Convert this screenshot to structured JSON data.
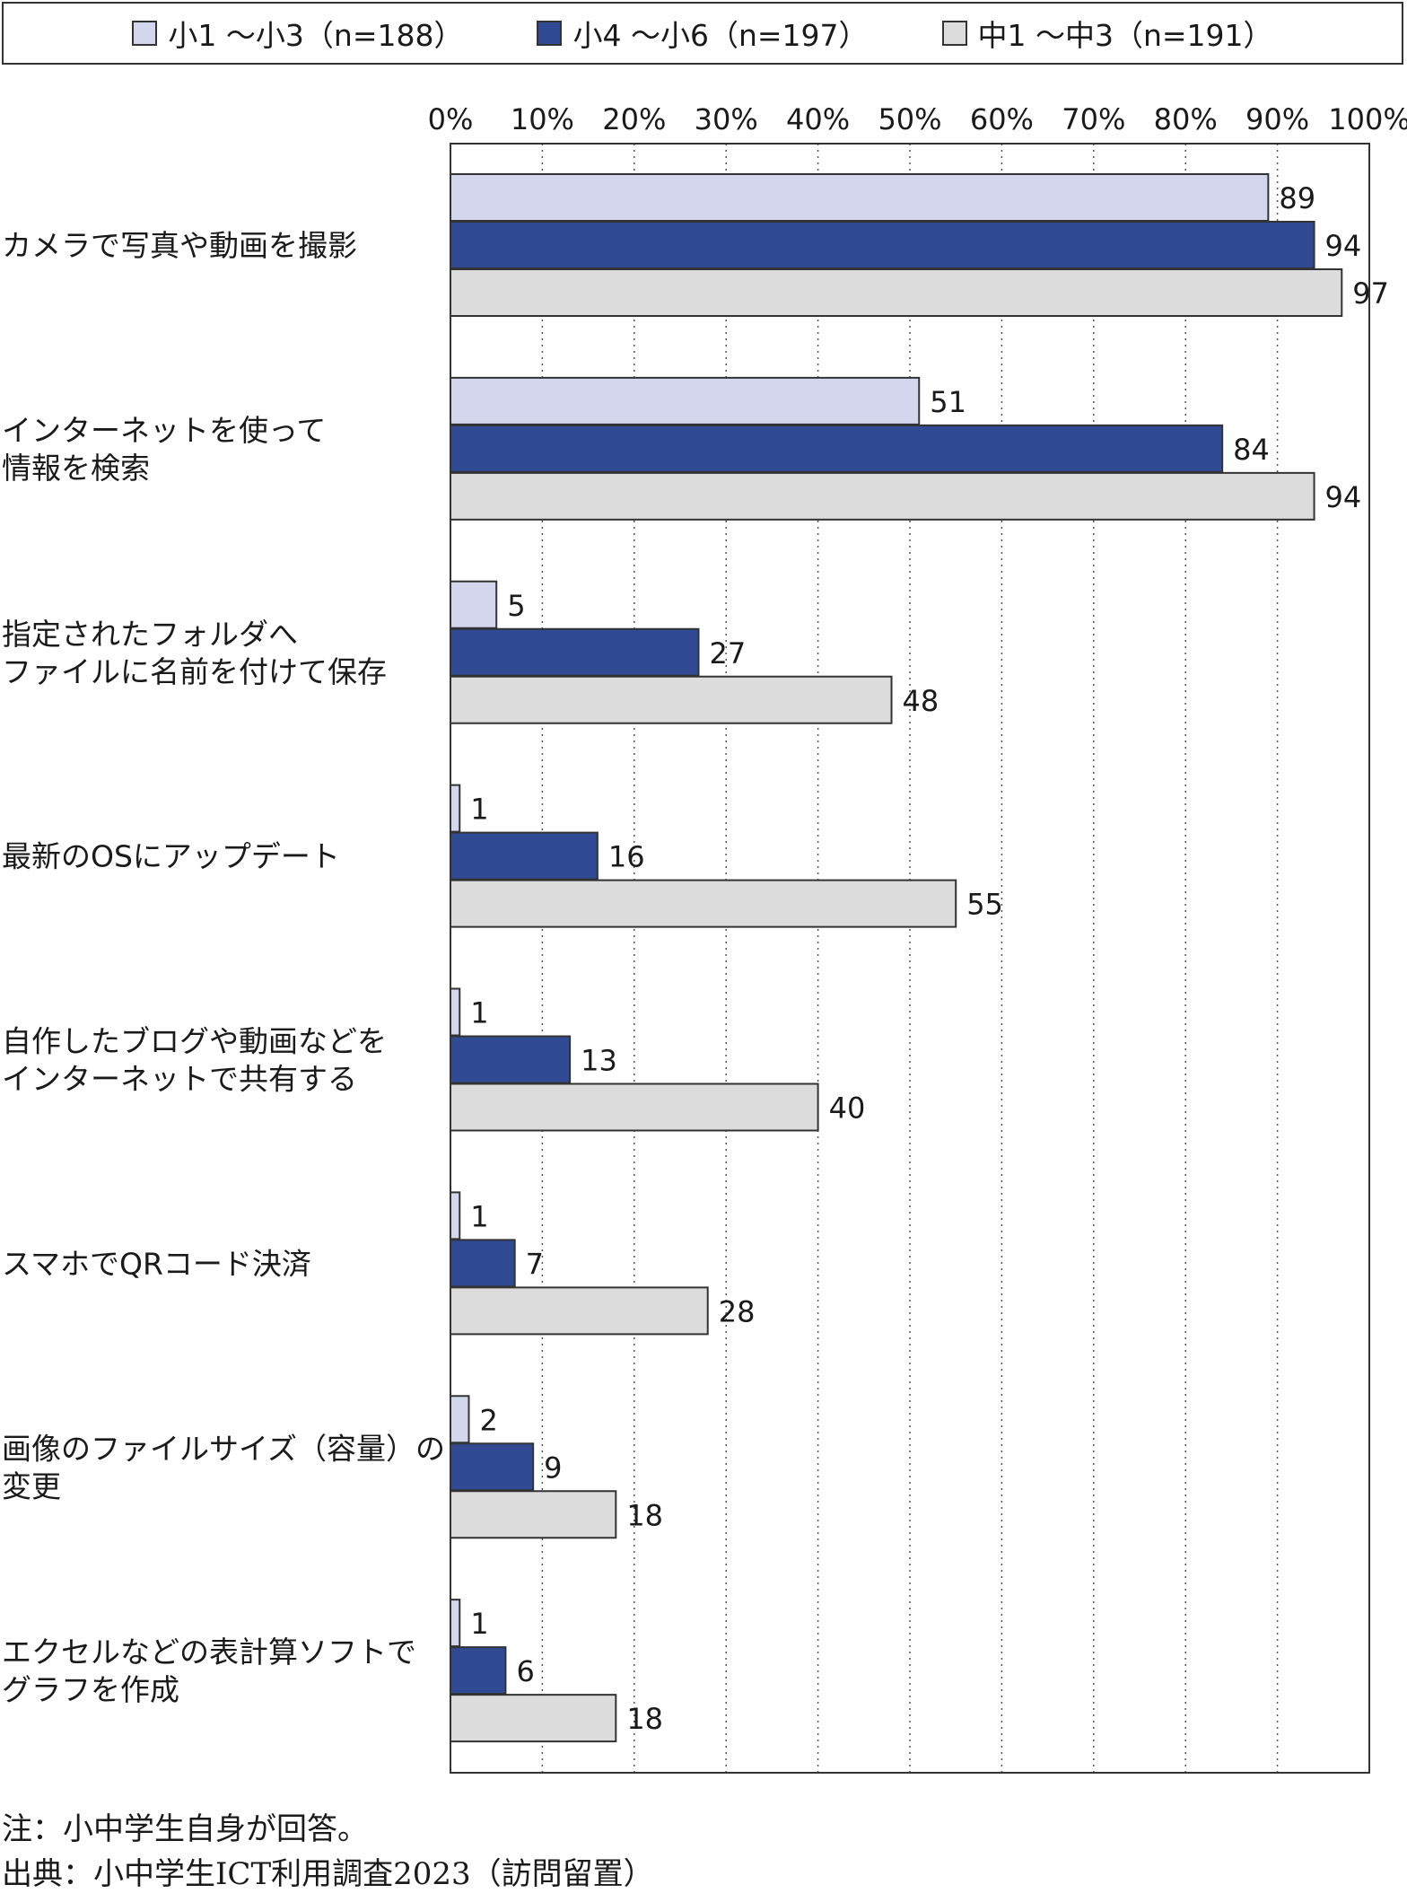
{
  "chart_data": {
    "type": "bar",
    "orientation": "horizontal",
    "categories": [
      [
        "カメラで写真や動画を撮影"
      ],
      [
        "インターネットを使って",
        "情報を検索"
      ],
      [
        "指定されたフォルダへ",
        "ファイルに名前を付けて保存"
      ],
      [
        "最新のOSにアップデート"
      ],
      [
        "自作したブログや動画などを",
        "インターネットで共有する"
      ],
      [
        "スマホでQRコード決済"
      ],
      [
        "画像のファイルサイズ（容量）の",
        "変更"
      ],
      [
        "エクセルなどの表計算ソフトで",
        "グラフを作成"
      ]
    ],
    "series": [
      {
        "name": "小1 ～小3（n=188）",
        "color": "#d3d6ec",
        "values": [
          89,
          51,
          5,
          1,
          1,
          1,
          2,
          1
        ]
      },
      {
        "name": "小4 ～小6（n=197）",
        "color": "#304a94",
        "values": [
          94,
          84,
          27,
          16,
          13,
          7,
          9,
          6
        ]
      },
      {
        "name": "中1 ～中3（n=191）",
        "color": "#dcdcdc",
        "values": [
          97,
          94,
          48,
          55,
          40,
          28,
          18,
          18
        ]
      }
    ],
    "xlim": [
      0,
      100
    ],
    "xticks": [
      "0%",
      "10%",
      "20%",
      "30%",
      "40%",
      "50%",
      "60%",
      "70%",
      "80%",
      "90%",
      "100%"
    ],
    "legend_position": "top",
    "grid": "vertical-dotted"
  },
  "notes": {
    "note": "注：小中学生自身が回答。",
    "source": "出典：小中学生ICT利用調査2023（訪問留置）"
  }
}
